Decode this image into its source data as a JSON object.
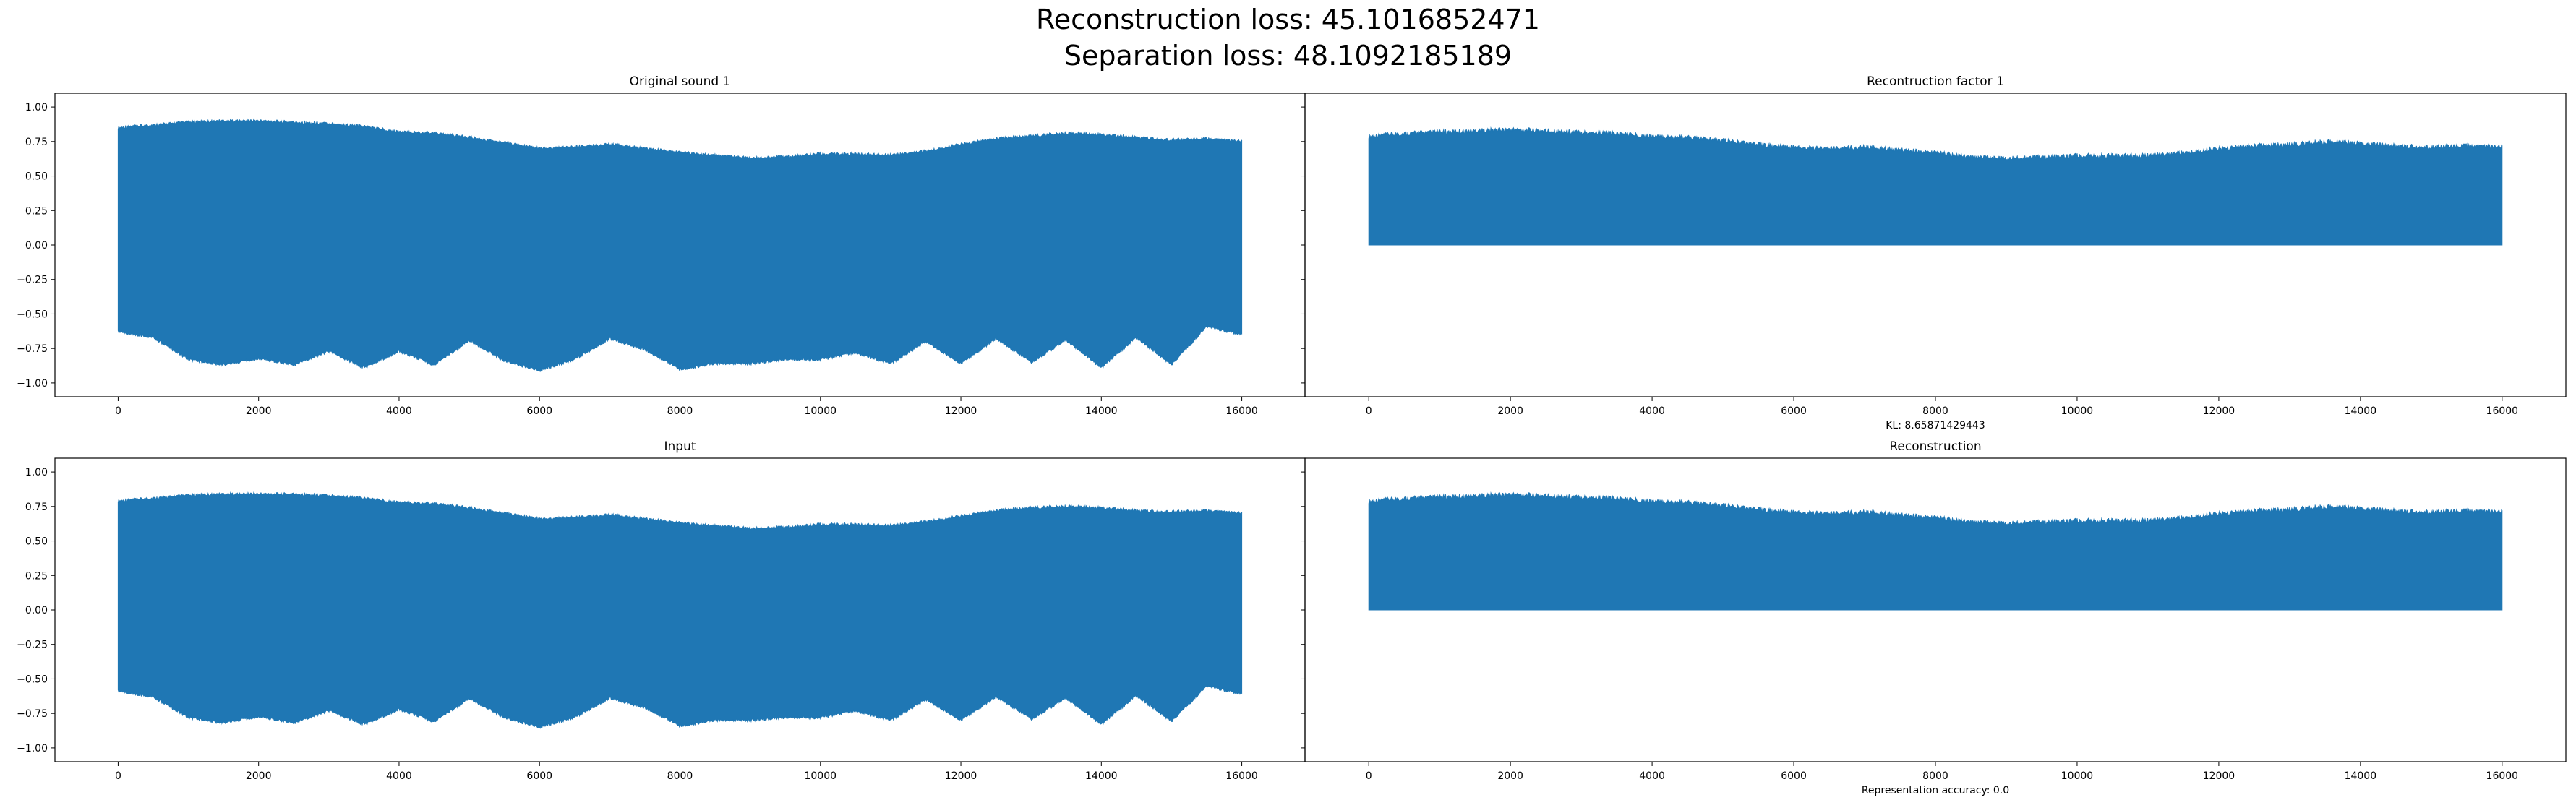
{
  "figure": {
    "suptitle_line1": "Reconstruction loss: 45.1016852471",
    "suptitle_line2": "Separation loss: 48.1092185189"
  },
  "style": {
    "series_color": "#1f77b4",
    "axis_color": "#000000"
  },
  "chart_data": [
    {
      "type": "area",
      "title": "Original sound 1",
      "xlabel": "",
      "xlim": [
        -900,
        16900
      ],
      "ylim": [
        -1.1,
        1.1
      ],
      "xticks": [
        "0",
        "2000",
        "4000",
        "6000",
        "8000",
        "10000",
        "12000",
        "14000",
        "16000"
      ],
      "yticks": [
        "1.00",
        "0.75",
        "0.50",
        "0.25",
        "0.00",
        "−0.25",
        "−0.50",
        "−0.75",
        "−1.00"
      ],
      "x": [
        0,
        500,
        1000,
        1500,
        2000,
        2500,
        3000,
        3500,
        4000,
        4500,
        5000,
        5500,
        6000,
        6500,
        7000,
        7500,
        8000,
        8500,
        9000,
        9500,
        10000,
        10500,
        11000,
        11500,
        12000,
        12500,
        13000,
        13500,
        14000,
        14500,
        15000,
        15500,
        16000
      ],
      "upper": [
        0.84,
        0.86,
        0.88,
        0.89,
        0.89,
        0.88,
        0.87,
        0.85,
        0.81,
        0.8,
        0.77,
        0.73,
        0.69,
        0.7,
        0.72,
        0.69,
        0.66,
        0.64,
        0.62,
        0.63,
        0.65,
        0.65,
        0.64,
        0.67,
        0.72,
        0.76,
        0.78,
        0.8,
        0.79,
        0.77,
        0.75,
        0.76,
        0.74
      ],
      "lower": [
        -0.62,
        -0.66,
        -0.82,
        -0.86,
        -0.81,
        -0.86,
        -0.76,
        -0.88,
        -0.76,
        -0.86,
        -0.68,
        -0.83,
        -0.9,
        -0.82,
        -0.67,
        -0.75,
        -0.89,
        -0.85,
        -0.85,
        -0.82,
        -0.82,
        -0.77,
        -0.85,
        -0.69,
        -0.85,
        -0.67,
        -0.84,
        -0.68,
        -0.88,
        -0.66,
        -0.86,
        -0.58,
        -0.64
      ]
    },
    {
      "type": "area",
      "title": "Recontruction factor 1",
      "xlabel": "KL: 8.65871429443",
      "xlim": [
        -900,
        16900
      ],
      "ylim": [
        -1.1,
        1.1
      ],
      "xticks": [
        "0",
        "2000",
        "4000",
        "6000",
        "8000",
        "10000",
        "12000",
        "14000",
        "16000"
      ],
      "yticks": [],
      "x": [
        0,
        500,
        1000,
        1500,
        2000,
        2500,
        3000,
        3500,
        4000,
        4500,
        5000,
        5500,
        6000,
        6500,
        7000,
        7500,
        8000,
        8500,
        9000,
        9500,
        10000,
        10500,
        11000,
        11500,
        12000,
        12500,
        13000,
        13500,
        14000,
        14500,
        15000,
        15500,
        16000
      ],
      "upper": [
        0.77,
        0.79,
        0.8,
        0.81,
        0.82,
        0.81,
        0.8,
        0.79,
        0.77,
        0.76,
        0.74,
        0.71,
        0.69,
        0.68,
        0.69,
        0.67,
        0.65,
        0.62,
        0.61,
        0.62,
        0.63,
        0.63,
        0.63,
        0.65,
        0.68,
        0.7,
        0.71,
        0.73,
        0.72,
        0.7,
        0.69,
        0.7,
        0.69
      ],
      "lower": [
        0,
        0,
        0,
        0,
        0,
        0,
        0,
        0,
        0,
        0,
        0,
        0,
        0,
        0,
        0,
        0,
        0,
        0,
        0,
        0,
        0,
        0,
        0,
        0,
        0,
        0,
        0,
        0,
        0,
        0,
        0,
        0,
        0
      ]
    },
    {
      "type": "area",
      "title": "Input",
      "xlabel": "",
      "xlim": [
        -900,
        16900
      ],
      "ylim": [
        -1.1,
        1.1
      ],
      "xticks": [
        "0",
        "2000",
        "4000",
        "6000",
        "8000",
        "10000",
        "12000",
        "14000",
        "16000"
      ],
      "yticks": [
        "1.00",
        "0.75",
        "0.50",
        "0.25",
        "0.00",
        "−0.25",
        "−0.50",
        "−0.75",
        "−1.00"
      ],
      "x": [
        0,
        500,
        1000,
        1500,
        2000,
        2500,
        3000,
        3500,
        4000,
        4500,
        5000,
        5500,
        6000,
        6500,
        7000,
        7500,
        8000,
        8500,
        9000,
        9500,
        10000,
        10500,
        11000,
        11500,
        12000,
        12500,
        13000,
        13500,
        14000,
        14500,
        15000,
        15500,
        16000
      ],
      "upper": [
        0.78,
        0.8,
        0.82,
        0.83,
        0.83,
        0.83,
        0.82,
        0.8,
        0.77,
        0.76,
        0.73,
        0.69,
        0.65,
        0.66,
        0.68,
        0.65,
        0.62,
        0.6,
        0.58,
        0.59,
        0.61,
        0.61,
        0.6,
        0.63,
        0.67,
        0.71,
        0.73,
        0.74,
        0.73,
        0.71,
        0.7,
        0.71,
        0.69
      ],
      "lower": [
        -0.58,
        -0.62,
        -0.77,
        -0.81,
        -0.76,
        -0.81,
        -0.72,
        -0.82,
        -0.71,
        -0.8,
        -0.63,
        -0.77,
        -0.84,
        -0.77,
        -0.63,
        -0.7,
        -0.83,
        -0.79,
        -0.79,
        -0.77,
        -0.77,
        -0.72,
        -0.79,
        -0.64,
        -0.79,
        -0.62,
        -0.78,
        -0.63,
        -0.82,
        -0.61,
        -0.8,
        -0.54,
        -0.6
      ]
    },
    {
      "type": "area",
      "title": "Reconstruction",
      "xlabel": "Representation accuracy: 0.0",
      "xlim": [
        -900,
        16900
      ],
      "ylim": [
        -1.1,
        1.1
      ],
      "xticks": [
        "0",
        "2000",
        "4000",
        "6000",
        "8000",
        "10000",
        "12000",
        "14000",
        "16000"
      ],
      "yticks": [],
      "x": [
        0,
        500,
        1000,
        1500,
        2000,
        2500,
        3000,
        3500,
        4000,
        4500,
        5000,
        5500,
        6000,
        6500,
        7000,
        7500,
        8000,
        8500,
        9000,
        9500,
        10000,
        10500,
        11000,
        11500,
        12000,
        12500,
        13000,
        13500,
        14000,
        14500,
        15000,
        15500,
        16000
      ],
      "upper": [
        0.77,
        0.79,
        0.8,
        0.81,
        0.82,
        0.81,
        0.8,
        0.79,
        0.77,
        0.76,
        0.74,
        0.71,
        0.69,
        0.68,
        0.69,
        0.67,
        0.65,
        0.62,
        0.61,
        0.62,
        0.63,
        0.63,
        0.63,
        0.65,
        0.68,
        0.7,
        0.71,
        0.73,
        0.72,
        0.7,
        0.69,
        0.7,
        0.69
      ],
      "lower": [
        0,
        0,
        0,
        0,
        0,
        0,
        0,
        0,
        0,
        0,
        0,
        0,
        0,
        0,
        0,
        0,
        0,
        0,
        0,
        0,
        0,
        0,
        0,
        0,
        0,
        0,
        0,
        0,
        0,
        0,
        0,
        0,
        0
      ]
    }
  ]
}
